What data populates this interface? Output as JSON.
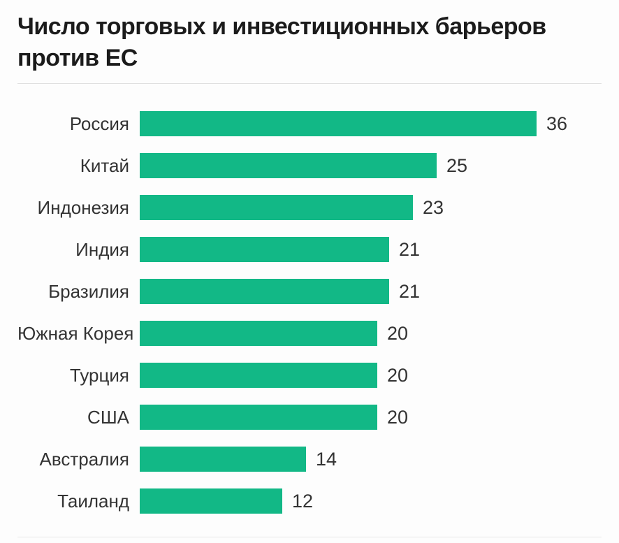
{
  "header": {
    "title": "Число торговых и инвестиционных барьеров против ЕС"
  },
  "chart_data": {
    "type": "bar",
    "orientation": "horizontal",
    "title": "Число торговых и инвестиционных барьеров против ЕС",
    "categories": [
      "Россия",
      "Китай",
      "Индонезия",
      "Индия",
      "Бразилия",
      "Южная Корея",
      "Турция",
      "США",
      "Австралия",
      "Таиланд"
    ],
    "values": [
      36,
      25,
      23,
      21,
      21,
      20,
      20,
      20,
      14,
      12
    ],
    "xlabel": "",
    "ylabel": "",
    "xlim": [
      0,
      36
    ],
    "grid": false,
    "legend_position": "none",
    "value_labels_shown": true,
    "bar_color": "#12b886",
    "label_color": "#333333",
    "title_color": "#1b1b1b"
  }
}
